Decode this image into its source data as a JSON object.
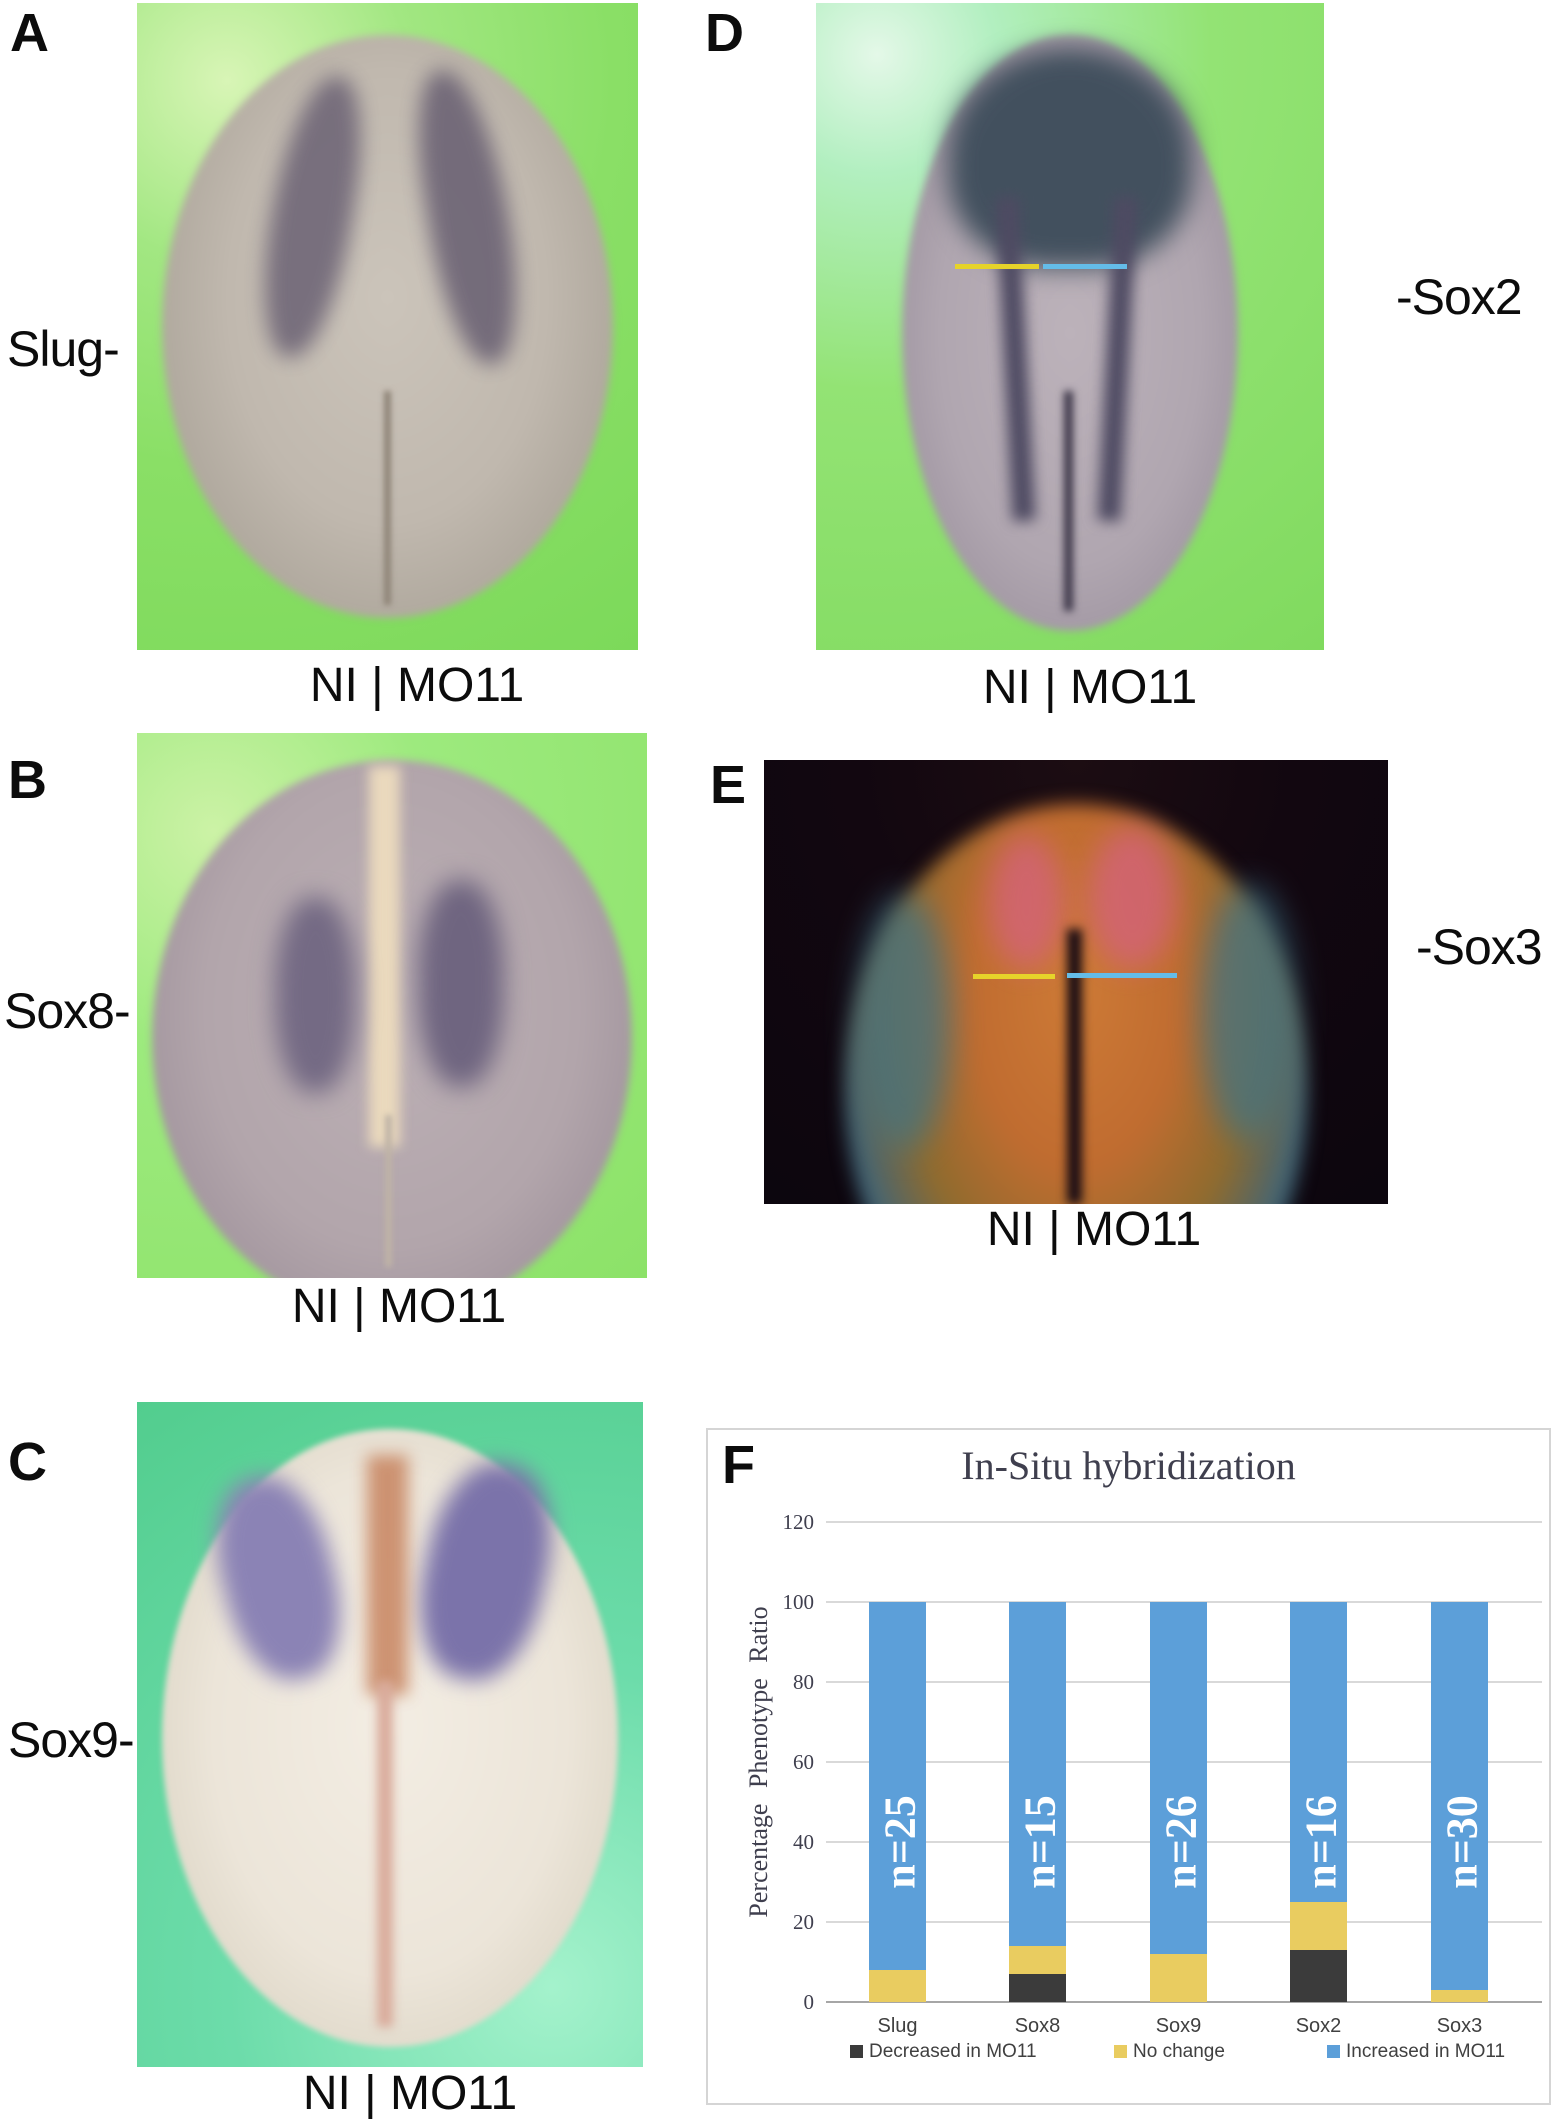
{
  "figure": {
    "panels": {
      "a": {
        "letter": "A",
        "side_label": "Slug-",
        "caption": "NI | MO11"
      },
      "b": {
        "letter": "B",
        "side_label": "Sox8-",
        "caption": "NI | MO11"
      },
      "c": {
        "letter": "C",
        "side_label": "Sox9-",
        "caption": "NI | MO11"
      },
      "d": {
        "letter": "D",
        "side_label": "-Sox2",
        "caption": "NI | MO11"
      },
      "e": {
        "letter": "E",
        "side_label": "-Sox3",
        "caption": "NI | MO11"
      },
      "f": {
        "letter": "F"
      }
    },
    "annotation_colors": {
      "yellow_line": "#e6d32a",
      "blue_line": "#64bce8"
    }
  },
  "chart_data": {
    "type": "bar",
    "stacked": true,
    "title": "In-Situ hybridization",
    "ylabel": "Percentage Phenotype Ratio",
    "xlabel": "",
    "categories": [
      "Slug",
      "Sox8",
      "Sox9",
      "Sox2",
      "Sox3"
    ],
    "series": [
      {
        "name": "Decreased in MO11",
        "color": "#3b3b3b",
        "values": [
          0,
          7,
          0,
          13,
          0
        ]
      },
      {
        "name": "No change",
        "color": "#e9cc60",
        "values": [
          8,
          7,
          12,
          12,
          3
        ]
      },
      {
        "name": "Increased in MO11",
        "color": "#5c9fd9",
        "values": [
          92,
          86,
          88,
          75,
          97
        ]
      }
    ],
    "bar_labels": [
      "n=25",
      "n=15",
      "n=26",
      "n=16",
      "n=30"
    ],
    "yticks": [
      0,
      20,
      40,
      60,
      80,
      100,
      120
    ],
    "ylim": [
      0,
      120
    ],
    "grid": true,
    "legend_position": "bottom"
  }
}
